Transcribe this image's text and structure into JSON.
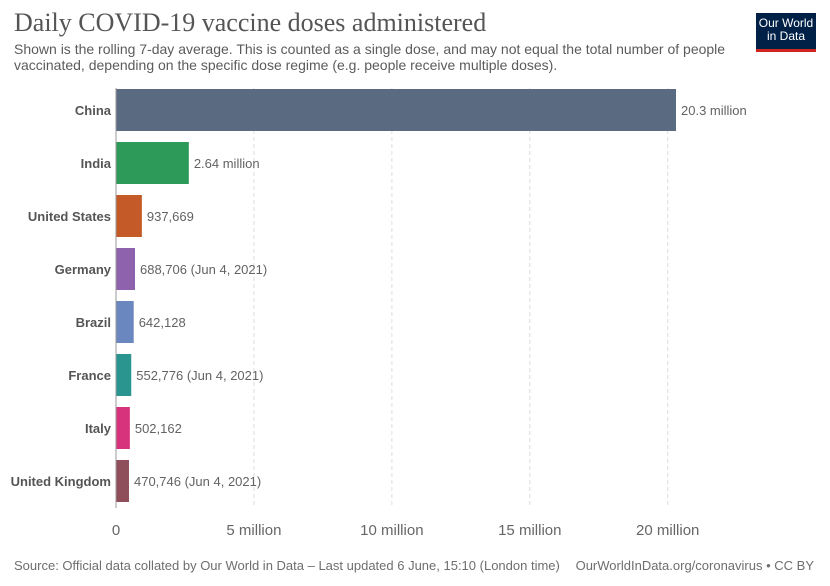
{
  "header": {
    "title": "Daily COVID-19 vaccine doses administered",
    "subtitle": "Shown is the rolling 7-day average. This is counted as a single dose, and may not equal the total number of people vaccinated, depending on the specific dose regime (e.g. people receive multiple doses).",
    "logo_line1": "Our World",
    "logo_line2": "in Data"
  },
  "footer": {
    "source": "Source: Official data collated by Our World in Data – Last updated 6 June, 15:10 (London time)",
    "credit": "OurWorldInData.org/coronavirus • CC BY"
  },
  "colors": {
    "logo_bg": "#002147",
    "logo_accent": "#ce261e"
  },
  "chart_data": {
    "type": "bar",
    "orientation": "horizontal",
    "categories": [
      "China",
      "India",
      "United States",
      "Germany",
      "Brazil",
      "France",
      "Italy",
      "United Kingdom"
    ],
    "values": [
      20300000,
      2640000,
      937669,
      688706,
      642128,
      552776,
      502162,
      470746
    ],
    "value_labels": [
      "20.3 million",
      "2.64 million",
      "937,669",
      "688,706 (Jun 4, 2021)",
      "642,128",
      "552,776 (Jun 4, 2021)",
      "502,162",
      "470,746 (Jun 4, 2021)"
    ],
    "colors": [
      "#5a6a80",
      "#2e9a5a",
      "#c35a28",
      "#8f62ad",
      "#6b87bf",
      "#29958e",
      "#d6337c",
      "#8f4f5a"
    ],
    "xlim": [
      0,
      20300000
    ],
    "x_ticks": [
      0,
      5000000,
      10000000,
      15000000,
      20000000
    ],
    "x_tick_labels": [
      "0",
      "5 million",
      "10 million",
      "15 million",
      "20 million"
    ],
    "grid": true
  }
}
